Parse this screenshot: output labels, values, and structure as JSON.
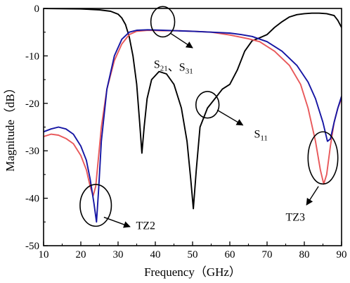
{
  "chart_data": {
    "type": "line",
    "xlabel": "Frequency（GHz）",
    "ylabel": "Magnitude（dB）",
    "xlim": [
      10,
      90
    ],
    "ylim": [
      -50,
      0
    ],
    "xticks": [
      10,
      20,
      30,
      40,
      50,
      60,
      70,
      80,
      90
    ],
    "yticks": [
      0,
      -10,
      -20,
      -30,
      -40,
      -50
    ],
    "grid": false,
    "series": [
      {
        "key": "s11",
        "color": "#000000",
        "x": [
          10,
          20,
          25,
          28,
          30,
          31,
          32,
          33,
          34,
          35,
          35.8,
          36.4,
          37,
          37.8,
          39,
          41,
          43,
          45,
          47,
          48.5,
          49.5,
          50.2,
          51,
          52,
          54,
          56,
          58,
          60,
          62,
          64,
          66,
          68,
          70,
          72,
          74,
          76,
          78,
          80,
          82,
          84,
          86,
          88,
          89,
          90
        ],
        "y": [
          0,
          -0.1,
          -0.3,
          -0.6,
          -1.2,
          -2,
          -3.4,
          -6,
          -10,
          -16,
          -24,
          -30.5,
          -25,
          -19,
          -15,
          -13.3,
          -13.8,
          -16,
          -21,
          -28,
          -36,
          -42.2,
          -34,
          -25,
          -21,
          -19,
          -17,
          -16,
          -13,
          -9,
          -6.8,
          -6.2,
          -5.5,
          -4,
          -2.8,
          -1.8,
          -1.3,
          -1.1,
          -1,
          -1,
          -1.1,
          -1.5,
          -2.5,
          -4
        ]
      },
      {
        "key": "s21-red",
        "color": "#e8585a",
        "x": [
          10,
          12,
          14,
          16,
          18,
          20,
          21.5,
          22.5,
          23.3,
          24,
          24.8,
          25.5,
          27,
          29,
          31,
          33,
          35,
          38,
          42,
          46,
          50,
          55,
          60,
          65,
          68,
          72,
          76,
          79,
          81,
          83,
          84.3,
          85.2,
          86,
          87,
          88,
          89,
          90
        ],
        "y": [
          -27,
          -26.5,
          -26.7,
          -27.4,
          -28.5,
          -31,
          -34,
          -37.5,
          -39.5,
          -37.5,
          -31,
          -25,
          -17,
          -11,
          -7.5,
          -5.5,
          -4.8,
          -4.6,
          -4.7,
          -4.7,
          -4.8,
          -5,
          -5.6,
          -6.4,
          -7,
          -9,
          -12,
          -16,
          -21,
          -28,
          -34,
          -37,
          -35,
          -29,
          -24,
          -21,
          -19
        ]
      },
      {
        "key": "s31-blue",
        "color": "#1515a3",
        "x": [
          10,
          12,
          14,
          16,
          18,
          20,
          21.5,
          22.5,
          23.5,
          24.2,
          24.8,
          25.5,
          27,
          29,
          31,
          33,
          35,
          38,
          42,
          46,
          50,
          55,
          60,
          63,
          66,
          70,
          74,
          78,
          81,
          83,
          85,
          86.2,
          87,
          88,
          89,
          90
        ],
        "y": [
          -26,
          -25.4,
          -25,
          -25.4,
          -26.5,
          -29,
          -32,
          -36,
          -41,
          -45,
          -38,
          -28,
          -17,
          -10,
          -6.5,
          -5,
          -4.6,
          -4.5,
          -4.6,
          -4.7,
          -4.8,
          -5,
          -5.2,
          -5.5,
          -5.9,
          -7,
          -9,
          -12,
          -15.5,
          -19,
          -24,
          -28,
          -27.5,
          -24,
          -21,
          -18.5
        ]
      }
    ],
    "annotations": [
      {
        "key": "s21s31",
        "text": "S21、S31",
        "ellipse": {
          "cx": 42,
          "cy": -2.8,
          "rx": 3.2,
          "ry": 3.2
        },
        "label_at": [
          39.6,
          -12.5
        ],
        "arrow_from": [
          44,
          -5.2
        ],
        "arrow_to": [
          50,
          -8.3
        ]
      },
      {
        "key": "s11",
        "text": "S11",
        "ellipse": {
          "cx": 54,
          "cy": -20.3,
          "rx": 3.1,
          "ry": 2.8
        },
        "label_at": [
          66.5,
          -27.2
        ],
        "arrow_from": [
          56.6,
          -21.4
        ],
        "arrow_to": [
          63.5,
          -24.6
        ]
      },
      {
        "key": "tz2",
        "text": "TZ2",
        "ellipse": {
          "cx": 24,
          "cy": -41.5,
          "rx": 4.2,
          "ry": 4.4
        },
        "label_at": [
          34.8,
          -46.5
        ],
        "arrow_from": [
          26.2,
          -44
        ],
        "arrow_to": [
          33.2,
          -46
        ]
      },
      {
        "key": "tz3",
        "text": "TZ3",
        "ellipse": {
          "cx": 85,
          "cy": -31.5,
          "rx": 4.0,
          "ry": 5.5
        },
        "label_at": [
          75,
          -44.7
        ],
        "arrow_from": [
          83.8,
          -37.5
        ],
        "arrow_to": [
          80.6,
          -41.4
        ]
      }
    ]
  }
}
